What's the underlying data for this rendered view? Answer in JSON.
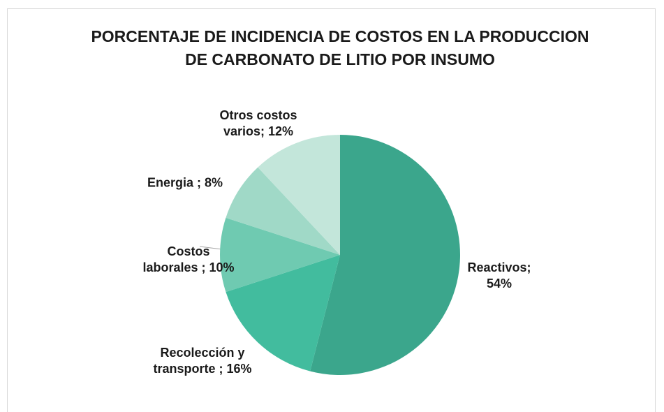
{
  "chart_data": {
    "type": "pie",
    "title": "PORCENTAJE DE INCIDENCIA DE COSTOS EN LA PRODUCCION DE CARBONATO DE LITIO POR INSUMO",
    "categories": [
      "Reactivos;",
      "Recolección y transporte ;",
      "Costos laborales ;",
      "Energia ;",
      "Otros costos varios;"
    ],
    "values": [
      54,
      16,
      10,
      8,
      12
    ],
    "value_labels": [
      "54%",
      "16%",
      "10%",
      "8%",
      "12%"
    ],
    "colors": [
      "#3ba68c",
      "#42bc9e",
      "#6fcab1",
      "#a0d9c7",
      "#c3e6da"
    ]
  }
}
